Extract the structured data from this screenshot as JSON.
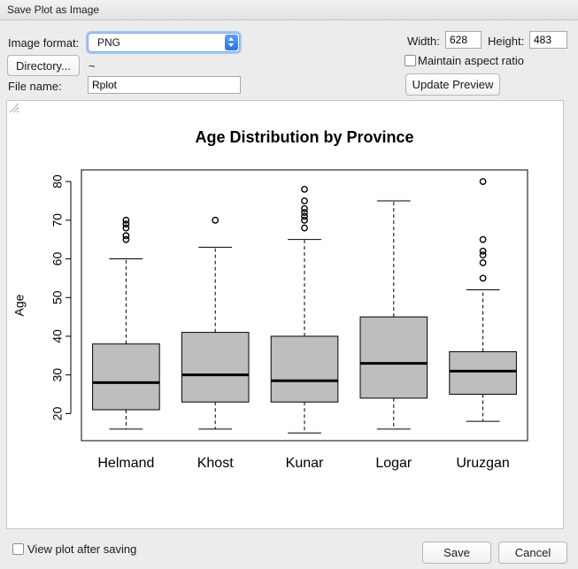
{
  "window": {
    "title": "Save Plot as Image"
  },
  "form": {
    "format_label": "Image format:",
    "format_value": "PNG",
    "directory_button": "Directory...",
    "directory_path": "~",
    "filename_label": "File name:",
    "filename_value": "Rplot",
    "width_label": "Width:",
    "width_value": "628",
    "height_label": "Height:",
    "height_value": "483",
    "aspect_label": "Maintain aspect ratio",
    "aspect_checked": false,
    "update_button": "Update Preview"
  },
  "footer": {
    "view_after_label": "View plot after saving",
    "view_after_checked": false,
    "save_button": "Save",
    "cancel_button": "Cancel"
  },
  "chart_data": {
    "type": "box",
    "title": "Age Distribution by Province",
    "xlabel": "",
    "ylabel": "Age",
    "ylim": [
      13,
      83
    ],
    "yticks": [
      20,
      30,
      40,
      50,
      60,
      70,
      80
    ],
    "box_fill": "#bebebe",
    "categories": [
      "Helmand",
      "Khost",
      "Kunar",
      "Logar",
      "Uruzgan"
    ],
    "boxes": [
      {
        "name": "Helmand",
        "lower_whisker": 16,
        "q1": 21,
        "median": 28,
        "q3": 38,
        "upper_whisker": 60,
        "outliers": [
          65,
          66,
          68,
          69,
          70
        ]
      },
      {
        "name": "Khost",
        "lower_whisker": 16,
        "q1": 23,
        "median": 30,
        "q3": 41,
        "upper_whisker": 63,
        "outliers": [
          70
        ]
      },
      {
        "name": "Kunar",
        "lower_whisker": 15,
        "q1": 23,
        "median": 28.5,
        "q3": 40,
        "upper_whisker": 65,
        "outliers": [
          68,
          70,
          71,
          72,
          73,
          75,
          78
        ]
      },
      {
        "name": "Logar",
        "lower_whisker": 16,
        "q1": 24,
        "median": 33,
        "q3": 45,
        "upper_whisker": 75,
        "outliers": []
      },
      {
        "name": "Uruzgan",
        "lower_whisker": 18,
        "q1": 25,
        "median": 31,
        "q3": 36,
        "upper_whisker": 52,
        "outliers": [
          55,
          59,
          61,
          62,
          65,
          80
        ]
      }
    ]
  }
}
